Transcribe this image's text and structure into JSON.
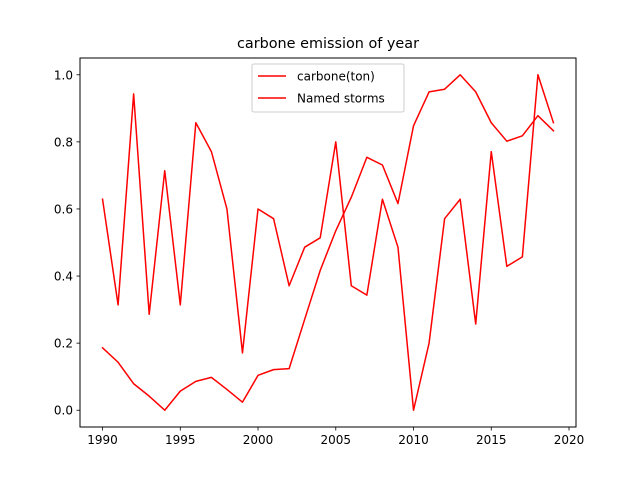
{
  "chart_data": {
    "type": "line",
    "title": "carbone emission of year",
    "xlabel": "",
    "ylabel": "",
    "xlim": [
      1988.55,
      2020.45
    ],
    "ylim": [
      -0.05,
      1.05
    ],
    "xticks": [
      1990,
      1995,
      2000,
      2005,
      2010,
      2015,
      2020
    ],
    "yticks": [
      0.0,
      0.2,
      0.4,
      0.6,
      0.8,
      1.0
    ],
    "xtick_labels": [
      "1990",
      "1995",
      "2000",
      "2005",
      "2010",
      "2015",
      "2020"
    ],
    "ytick_labels": [
      "0.0",
      "0.2",
      "0.4",
      "0.6",
      "0.8",
      "1.0"
    ],
    "grid": false,
    "legend_position": "upper center",
    "x": [
      1990,
      1991,
      1992,
      1993,
      1994,
      1995,
      1996,
      1997,
      1998,
      1999,
      2000,
      2001,
      2002,
      2003,
      2004,
      2005,
      2006,
      2007,
      2008,
      2009,
      2010,
      2011,
      2012,
      2013,
      2014,
      2015,
      2016,
      2017,
      2018,
      2019
    ],
    "series": [
      {
        "name": "carbone(ton)",
        "color": "#ff0000",
        "values": [
          0.186,
          0.143,
          0.079,
          0.042,
          0.0,
          0.057,
          0.086,
          0.098,
          0.062,
          0.024,
          0.104,
          0.121,
          0.124,
          0.271,
          0.417,
          0.535,
          0.635,
          0.754,
          0.731,
          0.616,
          0.848,
          0.949,
          0.957,
          1.0,
          0.949,
          0.857,
          0.802,
          0.818,
          0.878,
          0.833
        ]
      },
      {
        "name": "Named storms",
        "color": "#ff0000",
        "values": [
          0.629,
          0.314,
          0.943,
          0.286,
          0.714,
          0.314,
          0.857,
          0.771,
          0.6,
          0.171,
          0.6,
          0.571,
          0.371,
          0.486,
          0.514,
          0.8,
          0.371,
          0.343,
          0.629,
          0.486,
          0.0,
          0.2,
          0.571,
          0.629,
          0.257,
          0.771,
          0.429,
          0.457,
          1.0,
          0.857
        ]
      }
    ]
  }
}
